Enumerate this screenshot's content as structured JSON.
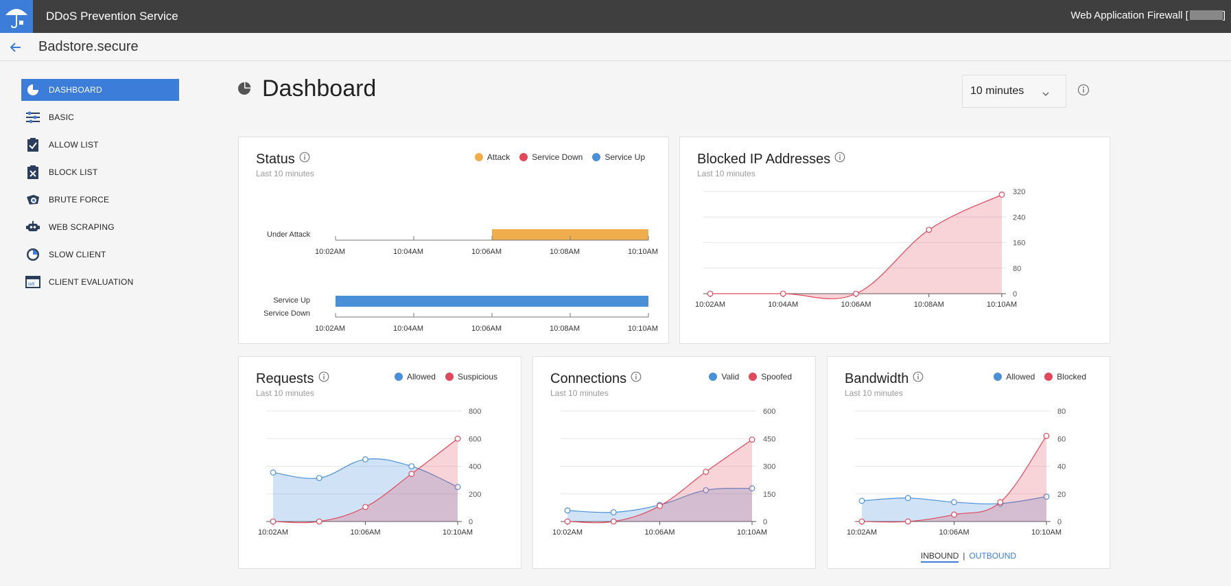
{
  "header": {
    "app_title": "DDoS Prevention Service",
    "waf_label": "Web Application Firewall [",
    "waf_suffix": "]"
  },
  "subheader": {
    "site": "Badstore.secure"
  },
  "sidebar": {
    "items": [
      {
        "label": "DASHBOARD",
        "icon": "pie-chart-icon"
      },
      {
        "label": "BASIC",
        "icon": "sliders-icon"
      },
      {
        "label": "ALLOW LIST",
        "icon": "clipboard-check-icon"
      },
      {
        "label": "BLOCK LIST",
        "icon": "clipboard-x-icon"
      },
      {
        "label": "BRUTE FORCE",
        "icon": "brute-force-icon"
      },
      {
        "label": "WEB SCRAPING",
        "icon": "robot-icon"
      },
      {
        "label": "SLOW CLIENT",
        "icon": "gauge-icon"
      },
      {
        "label": "CLIENT EVALUATION",
        "icon": "captcha-icon"
      }
    ]
  },
  "page": {
    "title": "Dashboard",
    "range": "10 minutes"
  },
  "colors": {
    "accent": "#3b7dd8",
    "attack": "#f0ad4e",
    "red": "#e0485b",
    "blue": "#4a90d9"
  },
  "status": {
    "title": "Status",
    "sub": "Last 10 minutes",
    "legend": [
      "Attack",
      "Service Down",
      "Service Up"
    ],
    "row1_label": "Under Attack",
    "row2_label_a": "Service Up",
    "row2_label_b": "Service Down"
  },
  "blocked": {
    "title": "Blocked IP Addresses",
    "sub": "Last 10 minutes"
  },
  "requests": {
    "title": "Requests",
    "sub": "Last 10 minutes",
    "legend": [
      "Allowed",
      "Suspicious"
    ]
  },
  "connections": {
    "title": "Connections",
    "sub": "Last 10 minutes",
    "legend": [
      "Valid",
      "Spoofed"
    ]
  },
  "bandwidth": {
    "title": "Bandwidth",
    "sub": "Last 10 minutes",
    "legend": [
      "Allowed",
      "Blocked"
    ],
    "tab_inbound": "INBOUND",
    "tab_outbound": "OUTBOUND",
    "tab_sep": "|"
  },
  "chart_data": [
    {
      "id": "status",
      "type": "timeline",
      "title": "Status",
      "x_ticks": [
        "10:02AM",
        "10:04AM",
        "10:06AM",
        "10:08AM",
        "10:10AM"
      ],
      "x_range": [
        0,
        8
      ],
      "rows": [
        {
          "label": "Under Attack",
          "segments": [
            {
              "state": "Attack",
              "from": 4,
              "to": 8
            }
          ]
        },
        {
          "label": "Service Up / Service Down",
          "segments": [
            {
              "state": "Service Up",
              "from": 0,
              "to": 8
            }
          ]
        }
      ]
    },
    {
      "id": "blocked",
      "type": "area",
      "title": "Blocked IP Addresses",
      "x": [
        0,
        2,
        4,
        6,
        8
      ],
      "x_ticks": [
        "10:02AM",
        "10:04AM",
        "10:06AM",
        "10:08AM",
        "10:10AM"
      ],
      "ylim": [
        0,
        320
      ],
      "y_ticks": [
        0,
        80,
        160,
        240,
        320
      ],
      "series": [
        {
          "name": "Blocked",
          "color": "red",
          "values": [
            0,
            0,
            0,
            200,
            310
          ]
        }
      ]
    },
    {
      "id": "requests",
      "type": "area",
      "title": "Requests",
      "x": [
        0,
        2,
        4,
        6,
        8
      ],
      "x_ticks": [
        "10:02AM",
        "10:06AM",
        "10:10AM"
      ],
      "x_tick_pos": [
        0,
        4,
        8
      ],
      "ylim": [
        0,
        800
      ],
      "y_ticks": [
        0,
        200,
        400,
        600,
        800
      ],
      "series": [
        {
          "name": "Allowed",
          "color": "blue",
          "values": [
            355,
            315,
            450,
            400,
            250
          ]
        },
        {
          "name": "Suspicious",
          "color": "red",
          "values": [
            0,
            0,
            105,
            345,
            600
          ]
        }
      ]
    },
    {
      "id": "connections",
      "type": "area",
      "title": "Connections",
      "x": [
        0,
        2,
        4,
        6,
        8
      ],
      "x_ticks": [
        "10:02AM",
        "10:06AM",
        "10:10AM"
      ],
      "x_tick_pos": [
        0,
        4,
        8
      ],
      "ylim": [
        0,
        600
      ],
      "y_ticks": [
        0,
        150,
        300,
        450,
        600
      ],
      "series": [
        {
          "name": "Valid",
          "color": "blue",
          "values": [
            60,
            50,
            90,
            170,
            180
          ]
        },
        {
          "name": "Spoofed",
          "color": "red",
          "values": [
            0,
            0,
            85,
            270,
            445
          ]
        }
      ]
    },
    {
      "id": "bandwidth",
      "type": "area",
      "title": "Bandwidth",
      "x": [
        0,
        2,
        4,
        6,
        8
      ],
      "x_ticks": [
        "10:02AM",
        "10:06AM",
        "10:10AM"
      ],
      "x_tick_pos": [
        0,
        4,
        8
      ],
      "ylim": [
        0,
        80
      ],
      "y_ticks": [
        0,
        20,
        40,
        60,
        80
      ],
      "series": [
        {
          "name": "Allowed",
          "color": "blue",
          "values": [
            15,
            17,
            14,
            13,
            18
          ]
        },
        {
          "name": "Blocked",
          "color": "red",
          "values": [
            0,
            0,
            5,
            14,
            62
          ]
        }
      ]
    }
  ]
}
